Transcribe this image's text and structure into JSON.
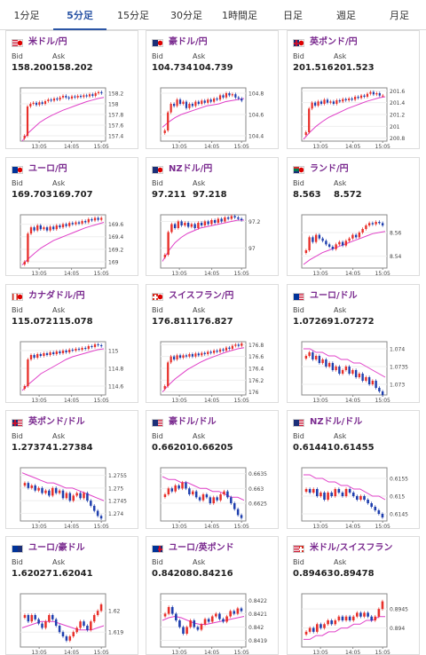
{
  "tabs": [
    {
      "label": "1分足",
      "active": false
    },
    {
      "label": "5分足",
      "active": true
    },
    {
      "label": "15分足",
      "active": false
    },
    {
      "label": "30分足",
      "active": false
    },
    {
      "label": "1時間足",
      "active": false
    },
    {
      "label": "日足",
      "active": false
    },
    {
      "label": "週足",
      "active": false
    },
    {
      "label": "月足",
      "active": false
    }
  ],
  "labels": {
    "bid": "Bid",
    "ask": "Ask"
  },
  "colors": {
    "accent": "#2b55a5",
    "pair_text": "#7a2a8f",
    "candle_up": "#e8302a",
    "candle_down": "#1f3fae",
    "ma_line": "#e040c8",
    "trend_line": "#33a6e0"
  },
  "cards": [
    {
      "name": "米ドル/円",
      "flags": [
        "us-flag",
        "jp-flag"
      ],
      "bid": "158.200",
      "ask": "158.202",
      "chart_data": {
        "type": "candlestick",
        "x_ticks": [
          "13:05",
          "14:05",
          "15:05"
        ],
        "y_ticks": [
          "158.2",
          "158",
          "157.8",
          "157.6",
          "157.4"
        ],
        "ylim": [
          157.3,
          158.3
        ],
        "closes": [
          157.4,
          157.95,
          158.0,
          158.02,
          157.98,
          158.03,
          158.0,
          158.05,
          158.08,
          158.06,
          158.1,
          158.08,
          158.12,
          158.15,
          158.12,
          158.1,
          158.14,
          158.12,
          158.15,
          158.13,
          158.16,
          158.14,
          158.18,
          158.15,
          158.2,
          158.22,
          158.2
        ],
        "ma": [
          157.3,
          157.45,
          157.55,
          157.65,
          157.72,
          157.78,
          157.83,
          157.88,
          157.92,
          157.96,
          158.0,
          158.04,
          158.07,
          158.1,
          158.12
        ]
      }
    },
    {
      "name": "豪ドル/円",
      "flags": [
        "au-flag",
        "jp-flag"
      ],
      "bid": "104.734",
      "ask": "104.739",
      "chart_data": {
        "type": "candlestick",
        "x_ticks": [
          "13:05",
          "14:05",
          "15:05"
        ],
        "y_ticks": [
          "104.8",
          "104.6",
          "104.4"
        ],
        "ylim": [
          104.35,
          104.85
        ],
        "closes": [
          104.45,
          104.62,
          104.7,
          104.68,
          104.74,
          104.7,
          104.72,
          104.66,
          104.7,
          104.68,
          104.72,
          104.7,
          104.73,
          104.71,
          104.74,
          104.72,
          104.75,
          104.74,
          104.78,
          104.76,
          104.8,
          104.78,
          104.79,
          104.76,
          104.75,
          104.73
        ],
        "ma": [
          104.48,
          104.53,
          104.57,
          104.6,
          104.62,
          104.64,
          104.66,
          104.68,
          104.69,
          104.7,
          104.72,
          104.73,
          104.74,
          104.75
        ]
      }
    },
    {
      "name": "英ポンド/円",
      "flags": [
        "gb-flag",
        "jp-flag"
      ],
      "bid": "201.516",
      "ask": "201.523",
      "chart_data": {
        "type": "candlestick",
        "x_ticks": [
          "13:05",
          "14:05",
          "15:05"
        ],
        "y_ticks": [
          "201.6",
          "201.4",
          "201.2",
          "201",
          "200.8"
        ],
        "ylim": [
          200.75,
          201.65
        ],
        "closes": [
          200.9,
          201.3,
          201.4,
          201.35,
          201.42,
          201.38,
          201.45,
          201.4,
          201.42,
          201.38,
          201.44,
          201.42,
          201.46,
          201.44,
          201.47,
          201.45,
          201.5,
          201.48,
          201.52,
          201.5,
          201.55,
          201.58,
          201.54,
          201.56,
          201.52,
          201.52
        ],
        "ma": [
          200.78,
          200.9,
          201.0,
          201.08,
          201.15,
          201.2,
          201.25,
          201.3,
          201.34,
          201.38,
          201.42,
          201.45,
          201.48,
          201.5
        ]
      }
    },
    {
      "name": "ユーロ/円",
      "flags": [
        "eu-flag",
        "jp-flag"
      ],
      "bid": "169.703",
      "ask": "169.707",
      "chart_data": {
        "type": "candlestick",
        "x_ticks": [
          "13:05",
          "14:05",
          "15:05"
        ],
        "y_ticks": [
          "169.6",
          "169.4",
          "169.2",
          "169"
        ],
        "ylim": [
          168.9,
          169.75
        ],
        "closes": [
          169.0,
          169.45,
          169.55,
          169.5,
          169.58,
          169.52,
          169.55,
          169.5,
          169.56,
          169.52,
          169.58,
          169.55,
          169.6,
          169.57,
          169.62,
          169.6,
          169.63,
          169.61,
          169.65,
          169.63,
          169.68,
          169.66,
          169.7,
          169.67,
          169.7
        ],
        "ma": [
          168.95,
          169.05,
          169.14,
          169.22,
          169.28,
          169.34,
          169.38,
          169.42,
          169.46,
          169.5,
          169.54,
          169.57,
          169.6,
          169.63
        ]
      }
    },
    {
      "name": "NZドル/円",
      "flags": [
        "nz-flag",
        "jp-flag"
      ],
      "bid": "97.211",
      "ask": "97.218",
      "chart_data": {
        "type": "candlestick",
        "x_ticks": [
          "13:05",
          "14:05",
          "15:05"
        ],
        "y_ticks": [
          "97.2",
          "97"
        ],
        "ylim": [
          96.85,
          97.25
        ],
        "closes": [
          96.95,
          97.12,
          97.18,
          97.15,
          97.2,
          97.17,
          97.19,
          97.16,
          97.18,
          97.15,
          97.19,
          97.17,
          97.2,
          97.18,
          97.21,
          97.19,
          97.22,
          97.2,
          97.23,
          97.22,
          97.24,
          97.23,
          97.22,
          97.21
        ],
        "ma": [
          96.9,
          96.98,
          97.04,
          97.08,
          97.11,
          97.13,
          97.15,
          97.16,
          97.17,
          97.18,
          97.19,
          97.2,
          97.21,
          97.21
        ]
      }
    },
    {
      "name": "ランド/円",
      "flags": [
        "za-flag",
        "jp-flag"
      ],
      "bid": "8.563",
      "ask": "8.572",
      "chart_data": {
        "type": "candlestick",
        "x_ticks": [
          "13:05",
          "14:05",
          "15:05"
        ],
        "y_ticks": [
          "8.56",
          "8.54"
        ],
        "ylim": [
          8.53,
          8.575
        ],
        "closes": [
          8.545,
          8.556,
          8.552,
          8.558,
          8.555,
          8.553,
          8.55,
          8.548,
          8.546,
          8.55,
          8.552,
          8.549,
          8.553,
          8.555,
          8.558,
          8.556,
          8.56,
          8.563,
          8.566,
          8.568,
          8.567,
          8.569,
          8.568,
          8.566
        ],
        "ma": [
          8.533,
          8.537,
          8.54,
          8.543,
          8.545,
          8.547,
          8.549,
          8.551,
          8.553,
          8.555,
          8.557,
          8.559,
          8.56,
          8.561
        ]
      }
    },
    {
      "name": "カナダドル/円",
      "flags": [
        "ca-flag",
        "jp-flag"
      ],
      "bid": "115.072",
      "ask": "115.078",
      "chart_data": {
        "type": "candlestick",
        "x_ticks": [
          "13:05",
          "14:05",
          "15:05"
        ],
        "y_ticks": [
          "115",
          "114.8",
          "114.6"
        ],
        "ylim": [
          114.5,
          115.1
        ],
        "closes": [
          114.6,
          114.9,
          114.95,
          114.92,
          114.96,
          114.94,
          114.97,
          114.95,
          114.98,
          114.96,
          114.99,
          114.97,
          115.0,
          114.98,
          115.01,
          115.0,
          115.02,
          115.01,
          115.03,
          115.02,
          115.05,
          115.04,
          115.07,
          115.06,
          115.05
        ],
        "ma": [
          114.55,
          114.62,
          114.68,
          114.74,
          114.78,
          114.82,
          114.86,
          114.9,
          114.93,
          114.95,
          114.97,
          114.99,
          115.01,
          115.02
        ]
      }
    },
    {
      "name": "スイスフラン/円",
      "flags": [
        "ch-flag",
        "jp-flag"
      ],
      "bid": "176.811",
      "ask": "176.827",
      "chart_data": {
        "type": "candlestick",
        "x_ticks": [
          "13:05",
          "14:05",
          "15:05"
        ],
        "y_ticks": [
          "176.8",
          "176.6",
          "176.4",
          "176.2",
          "176"
        ],
        "ylim": [
          175.95,
          176.85
        ],
        "closes": [
          176.1,
          176.5,
          176.6,
          176.55,
          176.62,
          176.58,
          176.62,
          176.6,
          176.64,
          176.6,
          176.65,
          176.62,
          176.66,
          176.64,
          176.68,
          176.66,
          176.7,
          176.68,
          176.72,
          176.7,
          176.75,
          176.73,
          176.78,
          176.8,
          176.78,
          176.82
        ],
        "ma": [
          176.0,
          176.12,
          176.22,
          176.3,
          176.38,
          176.44,
          176.5,
          176.55,
          176.59,
          176.63,
          176.67,
          176.7,
          176.73,
          176.75
        ]
      }
    },
    {
      "name": "ユーロ/ドル",
      "flags": [
        "eu-flag",
        "us-flag"
      ],
      "bid": "1.07269",
      "ask": "1.07272",
      "chart_data": {
        "type": "candlestick",
        "x_ticks": [
          "13:05",
          "14:05",
          "15:05"
        ],
        "y_ticks": [
          "1.074",
          "1.0735",
          "1.073"
        ],
        "ylim": [
          1.0727,
          1.0742
        ],
        "closes": [
          1.0738,
          1.0739,
          1.0737,
          1.0738,
          1.0736,
          1.0737,
          1.0735,
          1.0736,
          1.0734,
          1.0735,
          1.0733,
          1.0734,
          1.0735,
          1.0733,
          1.0734,
          1.0732,
          1.0733,
          1.0731,
          1.0732,
          1.073,
          1.0731,
          1.0729,
          1.0728,
          1.0727
        ],
        "ma": [
          1.074,
          1.074,
          1.0739,
          1.0739,
          1.0738,
          1.0738,
          1.0737,
          1.0737,
          1.0736,
          1.0736,
          1.0735,
          1.0734,
          1.0733,
          1.0732
        ]
      }
    },
    {
      "name": "英ポンド/ドル",
      "flags": [
        "gb-flag",
        "us-flag"
      ],
      "bid": "1.27374",
      "ask": "1.27384",
      "chart_data": {
        "type": "candlestick",
        "x_ticks": [
          "13:05",
          "14:05",
          "15:05"
        ],
        "y_ticks": [
          "1.2755",
          "1.275",
          "1.2745",
          "1.274"
        ],
        "ylim": [
          1.2737,
          1.2758
        ],
        "closes": [
          1.2752,
          1.275,
          1.2751,
          1.2749,
          1.275,
          1.2748,
          1.2749,
          1.2747,
          1.275,
          1.2748,
          1.2749,
          1.2746,
          1.2748,
          1.2745,
          1.2747,
          1.2748,
          1.2746,
          1.2748,
          1.2745,
          1.2743,
          1.2741,
          1.2739,
          1.2738
        ],
        "ma": [
          1.2756,
          1.2755,
          1.2754,
          1.2753,
          1.2752,
          1.2752,
          1.2751,
          1.275,
          1.275,
          1.2749,
          1.2748,
          1.2747,
          1.2746,
          1.2745
        ]
      }
    },
    {
      "name": "豪ドル/ドル",
      "flags": [
        "au-flag",
        "us-flag"
      ],
      "bid": "0.66201",
      "ask": "0.66205",
      "chart_data": {
        "type": "candlestick",
        "x_ticks": [
          "13:05",
          "14:05",
          "15:05"
        ],
        "y_ticks": [
          "0.6635",
          "0.663",
          "0.6625"
        ],
        "ylim": [
          0.6619,
          0.6637
        ],
        "closes": [
          0.6628,
          0.663,
          0.6629,
          0.6631,
          0.663,
          0.6632,
          0.663,
          0.6628,
          0.6629,
          0.6627,
          0.6626,
          0.6628,
          0.6627,
          0.6625,
          0.6627,
          0.6626,
          0.6628,
          0.6629,
          0.6627,
          0.6625,
          0.6623,
          0.6621,
          0.662
        ],
        "ma": [
          0.6634,
          0.6633,
          0.6633,
          0.6632,
          0.6632,
          0.6631,
          0.663,
          0.663,
          0.6629,
          0.6629,
          0.6628,
          0.6627,
          0.6627,
          0.6626
        ]
      }
    },
    {
      "name": "NZドル/ドル",
      "flags": [
        "nz-flag",
        "us-flag"
      ],
      "bid": "0.61441",
      "ask": "0.61455",
      "chart_data": {
        "type": "candlestick",
        "x_ticks": [
          "13:05",
          "14:05",
          "15:05"
        ],
        "y_ticks": [
          "0.6155",
          "0.615",
          "0.6145"
        ],
        "ylim": [
          0.6143,
          0.6158
        ],
        "closes": [
          0.6152,
          0.6151,
          0.6152,
          0.615,
          0.6151,
          0.6149,
          0.6151,
          0.615,
          0.6152,
          0.6151,
          0.615,
          0.6152,
          0.6151,
          0.615,
          0.6149,
          0.615,
          0.6149,
          0.6148,
          0.6147,
          0.6146,
          0.6145,
          0.6144
        ],
        "ma": [
          0.6156,
          0.6156,
          0.6155,
          0.6155,
          0.6154,
          0.6154,
          0.6153,
          0.6153,
          0.6152,
          0.6152,
          0.6151,
          0.615,
          0.615,
          0.6149
        ]
      }
    },
    {
      "name": "ユーロ/豪ドル",
      "flags": [
        "eu-flag",
        "au-flag"
      ],
      "bid": "1.62027",
      "ask": "1.62041",
      "chart_data": {
        "type": "candlestick",
        "x_ticks": [
          "13:05",
          "14:05",
          "15:05"
        ],
        "y_ticks": [
          "1.62",
          "1.619"
        ],
        "ylim": [
          1.6183,
          1.6208
        ],
        "closes": [
          1.6198,
          1.6195,
          1.6198,
          1.6196,
          1.6194,
          1.6192,
          1.6195,
          1.6198,
          1.6196,
          1.6193,
          1.619,
          1.6188,
          1.6186,
          1.6188,
          1.619,
          1.6192,
          1.6195,
          1.6193,
          1.6191,
          1.6195,
          1.6198,
          1.62,
          1.6203
        ],
        "ma": [
          1.6192,
          1.6193,
          1.6194,
          1.6195,
          1.6195,
          1.6195,
          1.6194,
          1.6193,
          1.6192,
          1.6191,
          1.6191,
          1.6191,
          1.6192,
          1.6193
        ]
      }
    },
    {
      "name": "ユーロ/英ポンド",
      "flags": [
        "eu-flag",
        "gb-flag"
      ],
      "bid": "0.84208",
      "ask": "0.84216",
      "chart_data": {
        "type": "candlestick",
        "x_ticks": [
          "13:05",
          "14:05",
          "15:05"
        ],
        "y_ticks": [
          "0.8422",
          "0.8421",
          "0.842",
          "0.8419"
        ],
        "ylim": [
          0.84185,
          0.84225
        ],
        "closes": [
          0.8421,
          0.84215,
          0.8421,
          0.84205,
          0.842,
          0.84195,
          0.842,
          0.84205,
          0.842,
          0.84198,
          0.84202,
          0.84206,
          0.84204,
          0.84208,
          0.8421,
          0.84206,
          0.84204,
          0.84208,
          0.84212,
          0.8421,
          0.84214,
          0.84212
        ],
        "ma": [
          0.84205,
          0.84207,
          0.84208,
          0.84207,
          0.84205,
          0.84203,
          0.84202,
          0.84202,
          0.84203,
          0.84204,
          0.84205,
          0.84206,
          0.84207,
          0.84208
        ]
      }
    },
    {
      "name": "米ドル/スイスフラン",
      "flags": [
        "us-flag",
        "ch-flag"
      ],
      "bid": "0.89463",
      "ask": "0.89478",
      "chart_data": {
        "type": "candlestick",
        "x_ticks": [
          "13:05",
          "14:05",
          "15:05"
        ],
        "y_ticks": [
          "0.8945",
          "0.894"
        ],
        "ylim": [
          0.8935,
          0.8949
        ],
        "closes": [
          0.8939,
          0.894,
          0.8939,
          0.8941,
          0.894,
          0.8941,
          0.8942,
          0.8941,
          0.8942,
          0.8943,
          0.8942,
          0.8943,
          0.8942,
          0.8943,
          0.8944,
          0.8943,
          0.8944,
          0.8943,
          0.8942,
          0.8943,
          0.8945,
          0.8947
        ],
        "ma": [
          0.8937,
          0.8937,
          0.8938,
          0.8938,
          0.8939,
          0.8939,
          0.894,
          0.894,
          0.8941,
          0.8941,
          0.8942,
          0.8942,
          0.8943,
          0.8943
        ]
      }
    }
  ]
}
